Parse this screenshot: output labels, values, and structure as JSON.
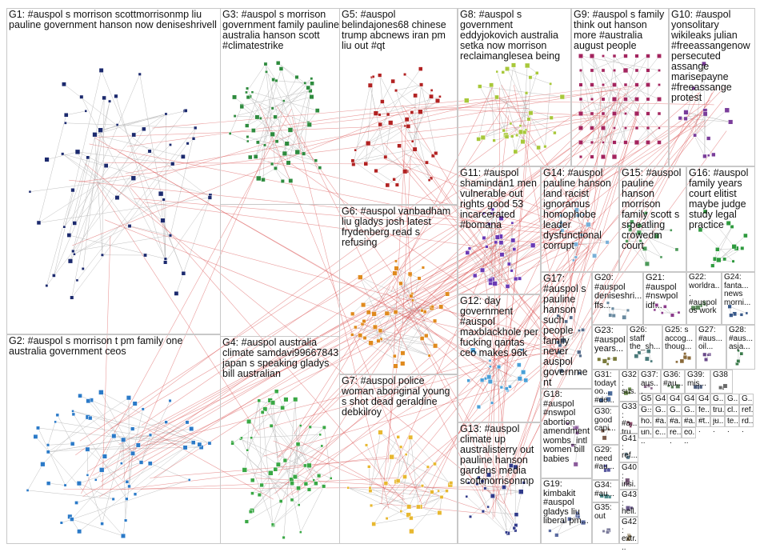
{
  "colors": {
    "edge": "#c0c0c0",
    "edge_inter": "#d84a4a",
    "node_outline": "#ffffff"
  },
  "groups": [
    {
      "id": "G1",
      "label": "G1: #auspol s morrison scottmorrisonmp liu pauline government hanson now deniseshrivell",
      "color": "#1c2a6e"
    },
    {
      "id": "G2",
      "label": "G2: #auspol s morrison t pm family one australia government ceos",
      "color": "#2b7ac8"
    },
    {
      "id": "G3",
      "label": "G3: #auspol s morrison government family pauline australia hanson scott #climatestrike",
      "color": "#2e8b3e"
    },
    {
      "id": "G4",
      "label": "G4: #auspol australia climate samdavi99667843 japan s speaking gladys bill australian",
      "color": "#3aa845"
    },
    {
      "id": "G5",
      "label": "G5: #auspol belindajones68 chinese trump abcnews iran pm liu out #qt",
      "color": "#b22222"
    },
    {
      "id": "G6",
      "label": "G6: #auspol vanbadham liu gladys josh latest frydenberg read s refusing",
      "color": "#e08a1e"
    },
    {
      "id": "G7",
      "label": "G7: #auspol police woman aboriginal young s shot dead geraldine debkilroy",
      "color": "#e8b830"
    },
    {
      "id": "G8",
      "label": "G8: #auspol s government eddyjokovich australia setka now morrison reclaimanglesea being",
      "color": "#a8c83a"
    },
    {
      "id": "G9",
      "label": "G9: #auspol s family think out hanson more #australia august people",
      "color": "#a3245e"
    },
    {
      "id": "G10",
      "label": "G10: #auspol yonsolitary wikileaks julian #freeassangenow persecuted assange marisepayne #freeassange protest",
      "color": "#7a3d9a"
    },
    {
      "id": "G11",
      "label": "G11: #auspol shamindan1 men vulnerable out rights good 53 incarcerated #bomana",
      "color": "#6a3ab5"
    },
    {
      "id": "G12",
      "label": "G12: day government #auspol maxblackhole per fucking qantas ceo makes 96k",
      "color": "#4aa0d8"
    },
    {
      "id": "G13",
      "label": "G13: #auspol climate up australisterry out pauline hanson gardens media scottmorrisonmp",
      "color": "#303a8a"
    },
    {
      "id": "G14",
      "label": "G14: #auspol pauline hanson land racist ignoramus homophobe leader dysfunctional corrupt",
      "color": "#7ab0d8"
    },
    {
      "id": "G15",
      "label": "G15: #auspol pauline hanson morrison family scott s srpeatling crowedm court",
      "color": "#4d9a5a"
    },
    {
      "id": "G16",
      "label": "G16: #auspol family years court elitist maybe judge study legal practice",
      "color": "#2e9a3e"
    },
    {
      "id": "G17",
      "label": "G17: #auspol s pauline hanson such people family never auspol government",
      "color": "#556b8a"
    },
    {
      "id": "G18",
      "label": "G18: #auspol #nswpol abortion amendment wombs_intl women bill babies",
      "color": "#8a5a9a"
    },
    {
      "id": "G19",
      "label": "G19: kimbakit #auspol gladys liu liberal pm...",
      "color": "#5a6aa0"
    },
    {
      "id": "G20",
      "label": "G20: #auspol deniseshri... ffs...",
      "color": "#6a8aa0"
    },
    {
      "id": "G21",
      "label": "G21: #auspol #nswpol idf...",
      "color": "#8a3a8a"
    },
    {
      "id": "G22",
      "label": "G22: worldra... #auspol os work",
      "color": "#5a8a5a"
    },
    {
      "id": "G23",
      "label": "G23: #auspol years...",
      "color": "#7a7a3a"
    },
    {
      "id": "G24",
      "label": "G24: fanta... news morni...",
      "color": "#3a5a8a"
    },
    {
      "id": "G25",
      "label": "G25: s accog... thoug...",
      "color": "#8a6a3a"
    },
    {
      "id": "G26",
      "label": "G26: staff the_sh...",
      "color": "#4a7a7a"
    },
    {
      "id": "G27",
      "label": "G27: #aus... oil...",
      "color": "#6a4a8a"
    },
    {
      "id": "G28",
      "label": "G28: #aus... asja...",
      "color": "#3a7a4a"
    },
    {
      "id": "G29",
      "label": "G29: need #au...",
      "color": "#5a5aa0"
    },
    {
      "id": "G30",
      "label": "G30: good capi...",
      "color": "#7a5a4a"
    },
    {
      "id": "G31",
      "label": "G31: todaytoo... #de...",
      "color": "#4a6a9a"
    },
    {
      "id": "G32",
      "label": "G32: sus...",
      "color": "#6a8a4a"
    },
    {
      "id": "G33",
      "label": "G33: #a... tru...",
      "color": "#8a4a6a"
    },
    {
      "id": "G34",
      "label": "G34: #au...",
      "color": "#4a8a8a"
    },
    {
      "id": "G35",
      "label": "G35: out",
      "color": "#7a7a9a"
    },
    {
      "id": "G36",
      "label": "G36: #au...",
      "color": "#5a7a5a"
    },
    {
      "id": "G37",
      "label": "G37: aus...",
      "color": "#8a6a8a"
    },
    {
      "id": "G38",
      "label": "G38",
      "color": "#6a6a6a"
    },
    {
      "id": "G39",
      "label": "G39: mis...",
      "color": "#4a5a7a"
    },
    {
      "id": "G40",
      "label": "G40: irisi...",
      "color": "#7a5a7a"
    },
    {
      "id": "G41",
      "label": "G41: ref...",
      "color": "#5a7a8a"
    },
    {
      "id": "G42",
      "label": "G42: extr...",
      "color": "#8a7a5a"
    },
    {
      "id": "G43",
      "label": "G43: hell...",
      "color": "#6a5a8a"
    }
  ],
  "small_cells": [
    "G5: ...",
    "G4",
    "G4",
    "G4",
    "G4",
    "G...",
    "G...",
    "G...",
    "G...",
    "G...",
    "G...",
    "G...",
    "fe...",
    "tru...",
    "cl...",
    "ref...",
    "ho...",
    "#a...",
    "#a...",
    "#a...",
    "#t...",
    "ju...",
    "te...",
    "rd...",
    "un...",
    "c...",
    "re...",
    "co..."
  ]
}
